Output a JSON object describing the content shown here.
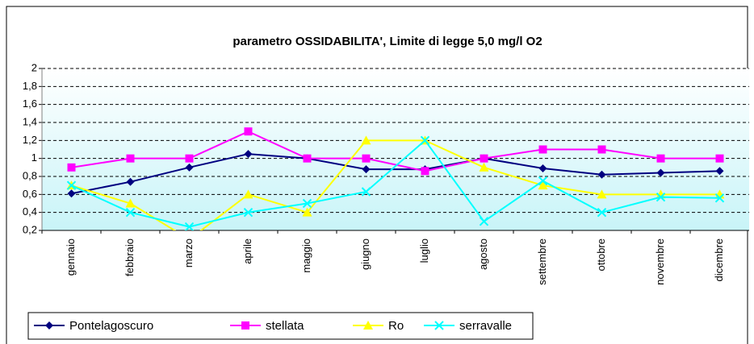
{
  "chart_data": {
    "type": "line",
    "title": "parametro OSSIDABILITA', Limite di legge 5,0 mg/l O2",
    "categories": [
      "gennaio",
      "febbraio",
      "marzo",
      "aprile",
      "maggio",
      "giugno",
      "luglio",
      "agosto",
      "settembre",
      "ottobre",
      "novembre",
      "dicembre"
    ],
    "series": [
      {
        "name": "Pontelagoscuro",
        "color": "#000080",
        "marker": "diamond",
        "values": [
          0.61,
          0.74,
          0.9,
          1.05,
          1.0,
          0.88,
          0.88,
          1.0,
          0.89,
          0.82,
          0.84,
          0.86
        ]
      },
      {
        "name": "stellata",
        "color": "#ff00ff",
        "marker": "square",
        "values": [
          0.9,
          1.0,
          1.0,
          1.3,
          1.0,
          1.0,
          0.86,
          1.0,
          1.1,
          1.1,
          1.0,
          1.0
        ]
      },
      {
        "name": "Ro",
        "color": "#ffff00",
        "marker": "triangle",
        "values": [
          0.7,
          0.5,
          0.1,
          0.6,
          0.4,
          1.2,
          1.2,
          0.9,
          0.7,
          0.6,
          0.6,
          0.6
        ]
      },
      {
        "name": "serravalle",
        "color": "#00ffff",
        "marker": "x",
        "values": [
          0.7,
          0.4,
          0.24,
          0.4,
          0.5,
          0.63,
          1.2,
          0.3,
          0.75,
          0.4,
          0.57,
          0.56
        ]
      }
    ],
    "ylim": [
      0.2,
      2
    ],
    "yticks": [
      {
        "value": 0.2,
        "label": "0,2"
      },
      {
        "value": 0.4,
        "label": "0,4"
      },
      {
        "value": 0.6,
        "label": "0,6"
      },
      {
        "value": 0.8,
        "label": "0,8"
      },
      1,
      {
        "value": 1.2,
        "label": "1,2"
      },
      {
        "value": 1.4,
        "label": "1,4"
      },
      {
        "value": 1.6,
        "label": "1,6"
      },
      {
        "value": 1.8,
        "label": "1,8"
      },
      2
    ],
    "grid": true,
    "legend": "bottom-left"
  }
}
